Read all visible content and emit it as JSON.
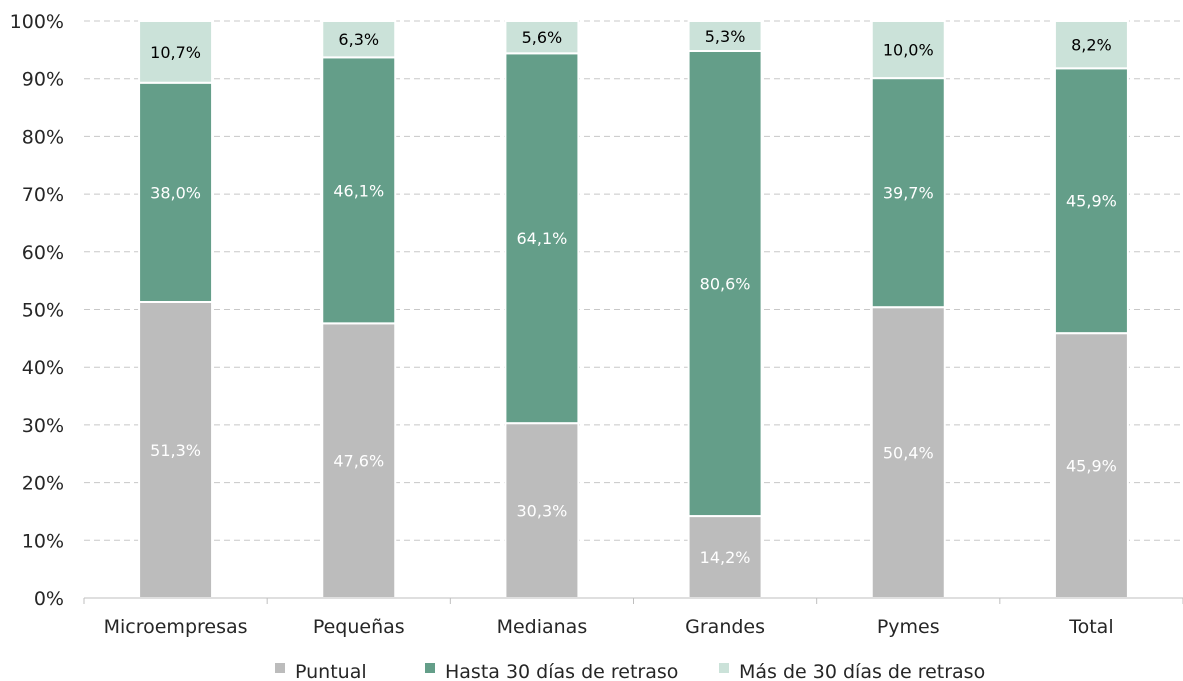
{
  "chart_data": {
    "type": "bar",
    "stacked": true,
    "title": "",
    "xlabel": "",
    "ylabel": "",
    "ylim": [
      0,
      100
    ],
    "y_ticks": [
      "0%",
      "10%",
      "20%",
      "30%",
      "40%",
      "50%",
      "60%",
      "70%",
      "80%",
      "90%",
      "100%"
    ],
    "grid": true,
    "legend_position": "bottom",
    "categories": [
      "Microempresas",
      "Pequeñas",
      "Medianas",
      "Grandes",
      "Pymes",
      "Total"
    ],
    "series": [
      {
        "name": "Puntual",
        "color": "#bcbcbc",
        "label_color": "#ffffff",
        "values": [
          51.3,
          47.6,
          30.3,
          14.2,
          50.4,
          45.9
        ],
        "labels": [
          "51,3%",
          "47,6%",
          "30,3%",
          "14,2%",
          "50,4%",
          "45,9%"
        ]
      },
      {
        "name": "Hasta 30 días de retraso",
        "color": "#649e89",
        "label_color": "#ffffff",
        "values": [
          38.0,
          46.1,
          64.1,
          80.6,
          39.7,
          45.9
        ],
        "labels": [
          "38,0%",
          "46,1%",
          "64,1%",
          "80,6%",
          "39,7%",
          "45,9%"
        ]
      },
      {
        "name": "Más de 30 días de retraso",
        "color": "#cbe2d9",
        "label_color": "#000000",
        "values": [
          10.7,
          6.3,
          5.6,
          5.3,
          10.0,
          8.2
        ],
        "labels": [
          "10,7%",
          "6,3%",
          "5,6%",
          "5,3%",
          "10,0%",
          "8,2%"
        ]
      }
    ]
  }
}
